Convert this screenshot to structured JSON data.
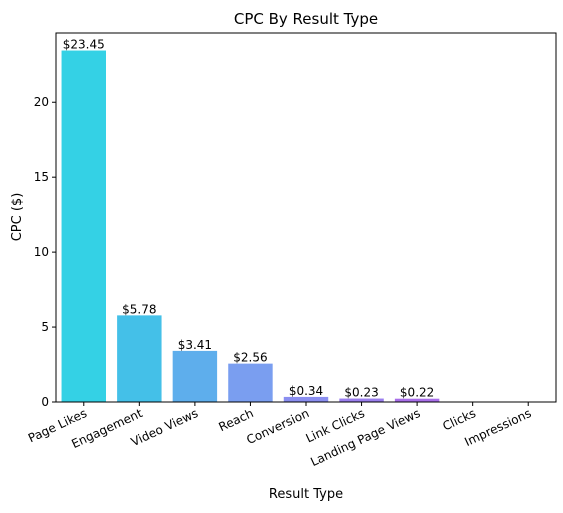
{
  "chart_data": {
    "type": "bar",
    "title": "CPC By Result Type",
    "xlabel": "Result Type",
    "ylabel": "CPC ($)",
    "categories": [
      "Page Likes",
      "Engagement",
      "Video Views",
      "Reach",
      "Conversion",
      "Link Clicks",
      "Landing Page Views",
      "Clicks",
      "Impressions"
    ],
    "values": [
      23.45,
      5.78,
      3.41,
      2.56,
      0.34,
      0.23,
      0.22,
      0,
      0
    ],
    "data_labels": [
      "$23.45",
      "$5.78",
      "$3.41",
      "$2.56",
      "$0.34",
      "$0.23",
      "$0.22",
      "",
      ""
    ],
    "colors": [
      "#34d1e5",
      "#44c0e8",
      "#5eaeec",
      "#7a9ef0",
      "#8a8ef0",
      "#9a7eee",
      "#a86ee9",
      "#b55fe4",
      "#c650df"
    ],
    "ylim": [
      0,
      24.62
    ],
    "yticks": [
      0,
      5,
      10,
      15,
      20
    ],
    "grid": false,
    "legend": "none"
  }
}
